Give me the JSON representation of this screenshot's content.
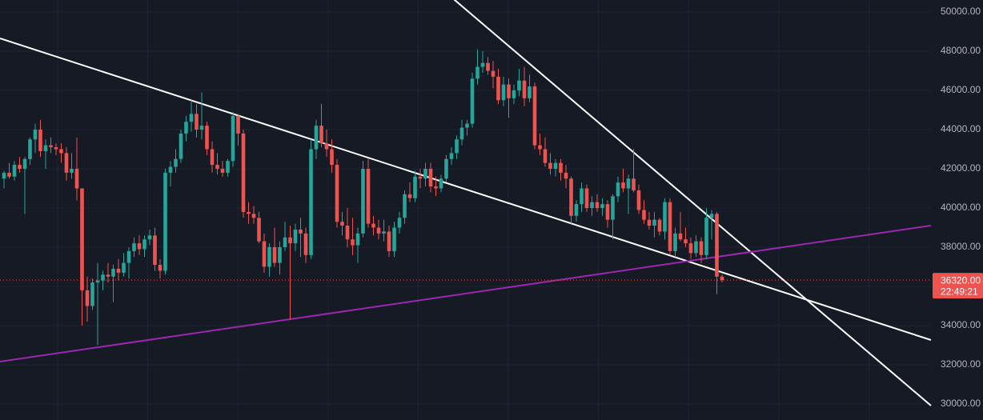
{
  "chart_data": {
    "type": "candlestick",
    "up_color": "#26a69a",
    "down_color": "#ef5350",
    "ylim": [
      29184,
      50612
    ],
    "yticks": [
      {
        "value": 30000,
        "label": "30000.00"
      },
      {
        "value": 32000,
        "label": "32000.00"
      },
      {
        "value": 34000,
        "label": "34000.00"
      },
      {
        "value": 36000,
        "label": "36000.00"
      },
      {
        "value": 38000,
        "label": "38000.00"
      },
      {
        "value": 40000,
        "label": "40000.00"
      },
      {
        "value": 42000,
        "label": "42000.00"
      },
      {
        "value": 44000,
        "label": "44000.00"
      },
      {
        "value": 46000,
        "label": "46000.00"
      },
      {
        "value": 48000,
        "label": "48000.00"
      },
      {
        "value": 50000,
        "label": "50000.00"
      }
    ],
    "grid": true,
    "open": [
      41500,
      41800,
      41600,
      42200,
      42000,
      42500,
      43500,
      44000,
      42900,
      43200,
      43100,
      43000,
      42800,
      41800,
      42000,
      41000,
      35800,
      35000,
      36200,
      36300,
      36600,
      36500,
      36900,
      36700,
      37200,
      37800,
      38200,
      37900,
      38400,
      38600,
      37100,
      36800,
      41800,
      42100,
      42500,
      43800,
      44400,
      44800,
      44000,
      44200,
      43000,
      42200,
      42000,
      41800,
      42400,
      44700,
      43800,
      39800,
      39700,
      39500,
      38300,
      37000,
      38000,
      37200,
      38000,
      38500,
      38200,
      38900,
      38700,
      37600,
      43000,
      44200,
      43300,
      43000,
      42200,
      39300,
      39100,
      38400,
      38100,
      38700,
      42000,
      39200,
      39000,
      38700,
      38800,
      37800,
      39000,
      39500,
      40700,
      40500,
      41600,
      41500,
      42000,
      41100,
      41000,
      41500,
      42500,
      42800,
      43500,
      44100,
      44300,
      46600,
      47200,
      47400,
      47000,
      46700,
      45500,
      46300,
      45600,
      46000,
      46500,
      45600,
      46200,
      43200,
      43000,
      42300,
      42000,
      42300,
      41800,
      41500,
      39600,
      40200,
      41000,
      40000,
      40300,
      40000,
      40200,
      39400,
      40600,
      41300,
      41000,
      41500,
      40900,
      39900,
      39400,
      39100,
      39400,
      38800,
      40300,
      37800,
      38700,
      38400,
      38200,
      37700,
      38300,
      37600,
      39500,
      39700,
      36500
    ],
    "high": [
      41900,
      42300,
      42400,
      42600,
      42600,
      43600,
      44300,
      44500,
      43500,
      43600,
      43300,
      43300,
      43100,
      42800,
      43600,
      41000,
      36500,
      36400,
      37200,
      36800,
      37200,
      37100,
      37400,
      37700,
      38000,
      38500,
      38600,
      38600,
      38900,
      39000,
      37400,
      42000,
      42400,
      43000,
      44000,
      44700,
      45500,
      45300,
      45900,
      44400,
      43400,
      42800,
      42400,
      42500,
      44900,
      44800,
      44000,
      40300,
      40100,
      39800,
      38700,
      38200,
      39000,
      38300,
      39300,
      39100,
      39200,
      39500,
      39000,
      43500,
      44500,
      45300,
      44000,
      43500,
      42500,
      39800,
      40000,
      39500,
      39000,
      42400,
      42500,
      39600,
      39400,
      39400,
      39100,
      39300,
      39800,
      40900,
      41300,
      41900,
      42000,
      42300,
      42300,
      41600,
      41700,
      42700,
      43100,
      43700,
      44500,
      44500,
      46900,
      48100,
      48000,
      47700,
      47500,
      47100,
      46700,
      46600,
      46300,
      47100,
      47200,
      46800,
      46400,
      43800,
      43600,
      42800,
      42500,
      42500,
      42200,
      41600,
      40400,
      41300,
      41200,
      40600,
      40700,
      40500,
      40400,
      40700,
      41600,
      42000,
      41700,
      43000,
      41200,
      40400,
      39800,
      39800,
      39500,
      40500,
      40500,
      39000,
      39800,
      39000,
      38500,
      38600,
      38500,
      40000,
      39900,
      39800,
      36600
    ],
    "low": [
      41000,
      41500,
      41400,
      41800,
      39700,
      42200,
      42800,
      42600,
      42000,
      42800,
      42700,
      42300,
      41400,
      41500,
      40400,
      34000,
      34200,
      34800,
      33000,
      35800,
      36200,
      35200,
      36300,
      36500,
      36400,
      37500,
      37600,
      37500,
      38100,
      36800,
      36400,
      36600,
      41100,
      41800,
      42300,
      43400,
      43900,
      43600,
      43500,
      42700,
      41800,
      41700,
      41600,
      41600,
      42100,
      43200,
      39500,
      39200,
      39200,
      38200,
      36700,
      36500,
      37000,
      36600,
      37800,
      34300,
      37800,
      37500,
      37200,
      37400,
      42500,
      43100,
      42600,
      41800,
      39000,
      38600,
      38000,
      37600,
      37200,
      38500,
      39000,
      38600,
      38400,
      38300,
      37500,
      37500,
      38700,
      39200,
      40300,
      40300,
      41000,
      41100,
      40800,
      40600,
      40800,
      41300,
      42200,
      42500,
      43200,
      43700,
      44100,
      46300,
      46900,
      46800,
      46100,
      45300,
      45200,
      44600,
      45300,
      45700,
      45200,
      45400,
      43000,
      42700,
      42100,
      41700,
      41600,
      41400,
      41000,
      39200,
      39300,
      39800,
      39800,
      39600,
      39800,
      39600,
      39000,
      38400,
      40300,
      40800,
      39700,
      40800,
      39700,
      39200,
      38900,
      38500,
      38600,
      38400,
      37600,
      37500,
      38300,
      38000,
      37400,
      37500,
      37200,
      37400,
      38400,
      35600,
      36200
    ],
    "close": [
      41800,
      41600,
      42200,
      42000,
      42500,
      43500,
      44000,
      42900,
      43200,
      43100,
      43000,
      42800,
      41800,
      42000,
      41000,
      35800,
      35000,
      36200,
      36300,
      36600,
      36500,
      36900,
      36700,
      37200,
      37800,
      38200,
      37900,
      38400,
      38600,
      37100,
      36800,
      41800,
      42100,
      42500,
      43800,
      44400,
      44800,
      44000,
      44200,
      43000,
      42200,
      42000,
      41800,
      42400,
      44700,
      43800,
      39800,
      39700,
      39500,
      38300,
      37000,
      38000,
      37200,
      38000,
      38500,
      38200,
      38900,
      38700,
      37600,
      43000,
      44200,
      43300,
      43000,
      42200,
      39300,
      39100,
      38400,
      38100,
      38700,
      42000,
      39200,
      39000,
      38700,
      38800,
      37800,
      39000,
      39500,
      40700,
      40500,
      41600,
      41500,
      42000,
      41100,
      41000,
      41500,
      42500,
      42800,
      43500,
      44100,
      44300,
      46600,
      47200,
      47400,
      47000,
      46700,
      45500,
      46300,
      45600,
      46000,
      46500,
      45600,
      46200,
      43200,
      43000,
      42300,
      42000,
      42300,
      41800,
      41500,
      39600,
      40200,
      41000,
      40000,
      40300,
      40000,
      40200,
      39400,
      40600,
      41300,
      41000,
      41500,
      40900,
      39900,
      39400,
      39100,
      39400,
      38800,
      40300,
      37800,
      38700,
      38400,
      38200,
      37700,
      38300,
      37600,
      39500,
      39700,
      36500,
      36320
    ],
    "trend_lines": [
      {
        "color": "#ffffff",
        "start": 48653,
        "end": 33265
      },
      {
        "color": "#ffffff",
        "start": 70368,
        "end": 29918
      },
      {
        "color": "#9c27b0",
        "start": 32163,
        "end": 39102
      }
    ],
    "last_price": {
      "value": 36320,
      "label": "36320.00"
    },
    "countdown": "22:49:21"
  }
}
